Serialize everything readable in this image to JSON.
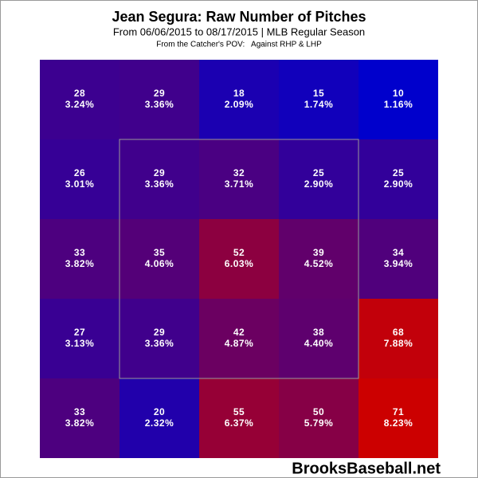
{
  "chart_data": {
    "type": "heatmap",
    "title": "Jean Segura: Raw Number of Pitches",
    "subtitle": "From 06/06/2015 to 08/17/2015 | MLB Regular Season",
    "note": "From the Catcher's POV:   Against RHP & LHP",
    "credit": "BrooksBaseball.net",
    "color_low": "#0000cc",
    "color_high": "#cc0000",
    "values": [
      [
        28,
        29,
        18,
        15,
        10
      ],
      [
        26,
        29,
        32,
        25,
        25
      ],
      [
        33,
        35,
        52,
        39,
        34
      ],
      [
        27,
        29,
        42,
        38,
        68
      ],
      [
        33,
        20,
        55,
        50,
        71
      ]
    ],
    "shares": [
      [
        3.24,
        3.36,
        2.09,
        1.74,
        1.16
      ],
      [
        3.01,
        3.36,
        3.71,
        2.9,
        2.9
      ],
      [
        3.82,
        4.06,
        6.03,
        4.52,
        3.94
      ],
      [
        3.13,
        3.36,
        4.87,
        4.4,
        7.88
      ],
      [
        3.82,
        2.32,
        6.37,
        5.79,
        8.23
      ]
    ],
    "share_labels": [
      [
        "3.24%",
        "3.36%",
        "2.09%",
        "1.74%",
        "1.16%"
      ],
      [
        "3.01%",
        "3.36%",
        "3.71%",
        "2.90%",
        "2.90%"
      ],
      [
        "3.82%",
        "4.06%",
        "6.03%",
        "4.52%",
        "3.94%"
      ],
      [
        "3.13%",
        "3.36%",
        "4.87%",
        "4.40%",
        "7.88%"
      ],
      [
        "3.82%",
        "2.32%",
        "6.37%",
        "5.79%",
        "8.23%"
      ]
    ]
  }
}
